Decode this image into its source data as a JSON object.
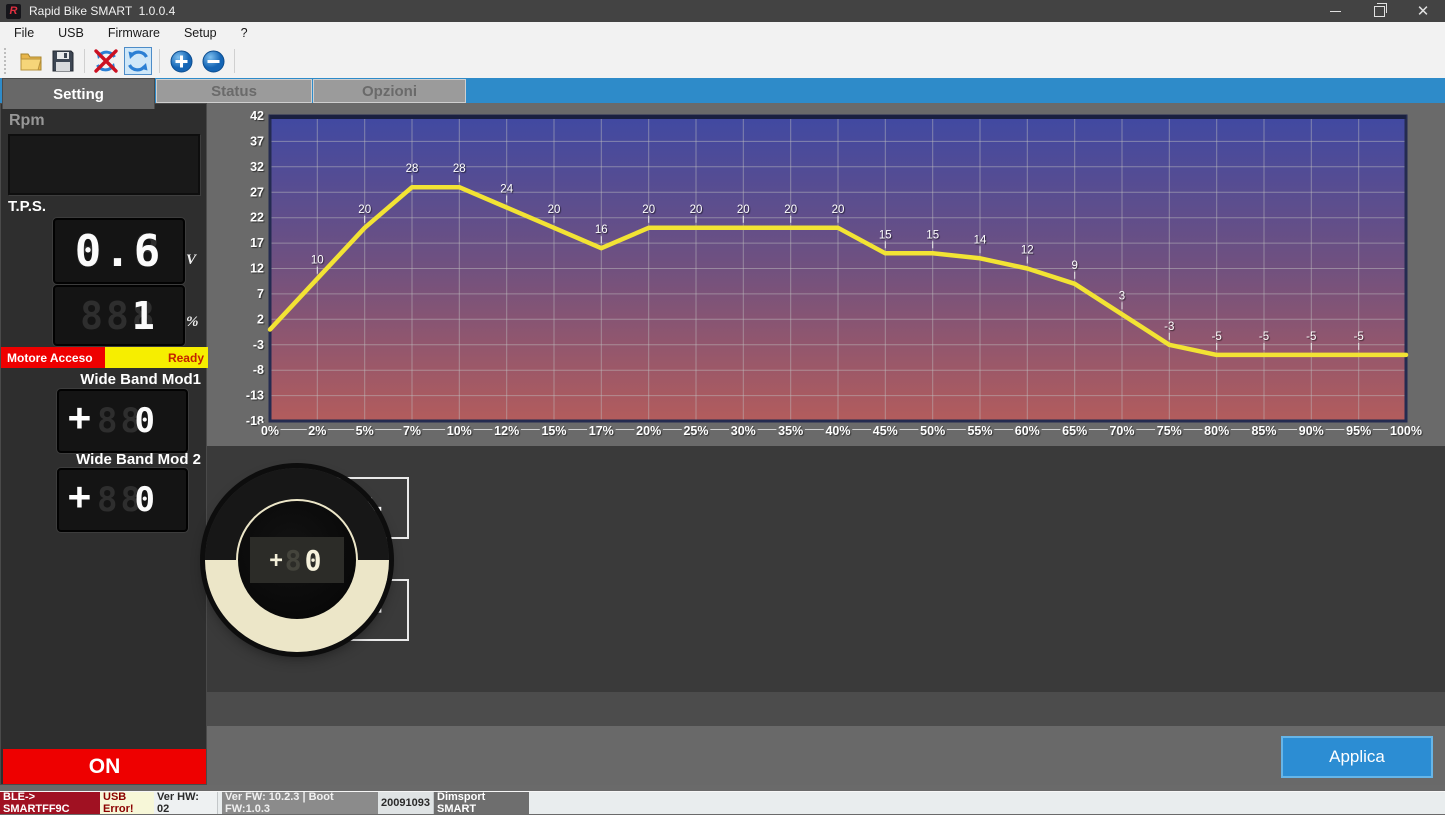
{
  "window": {
    "title": "Rapid Bike SMART  1.0.0.4",
    "logo_letter": "R",
    "controls": [
      "minimize",
      "maximize",
      "close"
    ]
  },
  "menu": {
    "items": [
      "File",
      "USB",
      "Firmware",
      "Setup",
      "?"
    ]
  },
  "toolbar": {
    "icons": [
      "open-folder-icon",
      "save-icon",
      "usb-disconnect-icon",
      "sync-icon",
      "increase-icon",
      "decrease-icon"
    ],
    "selected_icon": "sync-icon"
  },
  "tabs": [
    {
      "label": "Setting",
      "active": true
    },
    {
      "label": "Status",
      "active": false
    },
    {
      "label": "Opzioni",
      "active": false
    }
  ],
  "sidebar": {
    "rpm_label": "Rpm",
    "tps_label": "T.P.S.",
    "tps_voltage_ghost": "8.8",
    "tps_voltage": "0.6",
    "tps_voltage_unit": "V",
    "tps_percent_ghost": "888",
    "tps_percent": "  1",
    "tps_percent_unit": "%",
    "engine_status": "Motore Acceso",
    "ready_status": "Ready",
    "wideband1_label": "Wide Band Mod1",
    "wideband1_sign": "+",
    "wideband1_ghost": "88",
    "wideband1_value": " 0",
    "wideband2_label": "Wide Band Mod 2",
    "wideband2_sign": "+",
    "wideband2_ghost": "88",
    "wideband2_value": " 0",
    "power_button": "ON"
  },
  "knob": {
    "sign": "+",
    "ghost": "88",
    "value": " 0",
    "plus_label": "+",
    "minus_label": "−"
  },
  "apply_button": "Applica",
  "statusbar": {
    "segments": [
      {
        "text": "BLE-> SMARTFF9C",
        "bg": "#a01122",
        "fg": "#ffffff"
      },
      {
        "text": "USB Error!",
        "bg": "#f7f7d8",
        "fg": "#8b0000"
      },
      {
        "text": "Ver HW: 02",
        "bg": "#eef1f2",
        "fg": "#2a2a2a"
      },
      {
        "text": "Ver FW: 10.2.3 | Boot FW:1.0.3",
        "bg": "#8b8b8b",
        "fg": "#f0f0f0"
      },
      {
        "text": "20091093",
        "bg": "#dfe3e4",
        "fg": "#2a2a2a"
      },
      {
        "text": "Dimsport SMART",
        "bg": "#6e6e6e",
        "fg": "#ffffff"
      }
    ]
  },
  "colors": {
    "accent_blue": "#2e8bc9",
    "apply_blue": "#2c8dd3",
    "engine_red": "#ee0000",
    "ready_yellow": "#f6ee00",
    "line_yellow": "#f2e334"
  },
  "chart_data": {
    "type": "line",
    "categories": [
      "0%",
      "2%",
      "5%",
      "7%",
      "10%",
      "12%",
      "15%",
      "17%",
      "20%",
      "25%",
      "30%",
      "35%",
      "40%",
      "45%",
      "50%",
      "55%",
      "60%",
      "65%",
      "70%",
      "75%",
      "80%",
      "85%",
      "90%",
      "95%",
      "100%"
    ],
    "values": [
      0,
      10,
      20,
      28,
      28,
      24,
      20,
      16,
      20,
      20,
      20,
      20,
      20,
      15,
      15,
      14,
      12,
      9,
      3,
      -3,
      -5,
      -5,
      -5,
      -5,
      -5
    ],
    "point_labels": [
      "",
      "10",
      "20",
      "28",
      "28",
      "24",
      "20",
      "16",
      "20",
      "20",
      "20",
      "20",
      "20",
      "15",
      "15",
      "14",
      "12",
      "9",
      "3",
      "-3",
      "-5",
      "-5",
      "-5",
      "-5",
      ""
    ],
    "yticks": [
      42,
      37,
      32,
      27,
      22,
      17,
      12,
      7,
      2,
      -3,
      -8,
      -13,
      -18
    ],
    "ylim": [
      -18,
      42
    ],
    "grid": true,
    "legend": "none",
    "line_color": "#f2e334",
    "bg_gradient": [
      "#4049a2",
      "#71517f",
      "#b35c5c"
    ]
  }
}
